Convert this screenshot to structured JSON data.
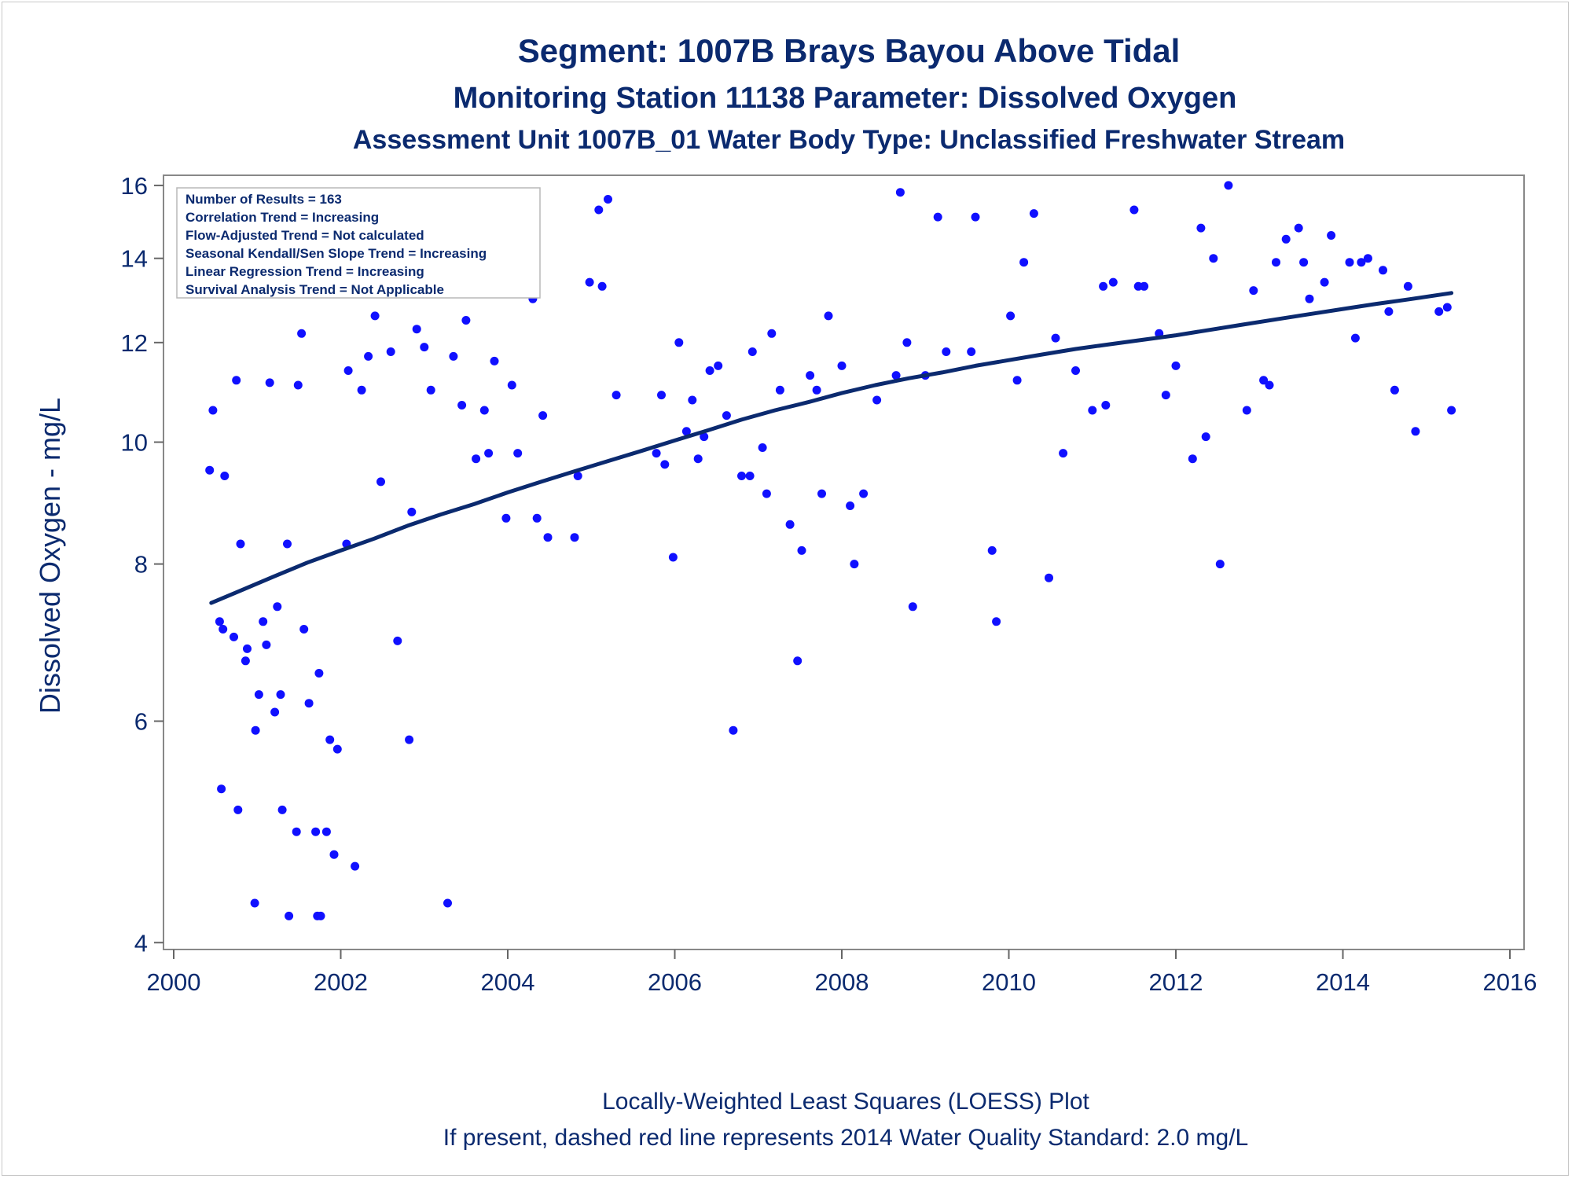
{
  "titles": {
    "line1": "Segment: 1007B  Brays Bayou Above Tidal",
    "line2": "Monitoring Station 11138 Parameter: Dissolved Oxygen",
    "line3": "Assessment Unit 1007B_01   Water Body Type: Unclassified Freshwater Stream"
  },
  "stats_box": [
    "Number of Results = 163",
    "Correlation Trend = Increasing",
    "Flow-Adjusted Trend = Not calculated",
    "Seasonal Kendall/Sen Slope Trend = Increasing",
    "Linear Regression Trend = Increasing",
    "Survival Analysis Trend = Not Applicable"
  ],
  "footer": {
    "line1": "Locally-Weighted Least Squares (LOESS) Plot",
    "line2": "If present, dashed red line represents 2014 Water Quality Standard: 2.0 mg/L"
  },
  "chart_data": {
    "type": "scatter",
    "ylabel": "Dissolved Oxygen - mg/L",
    "xlabel": "",
    "y_scale": "log",
    "xlim": [
      2000,
      2016
    ],
    "ylim": [
      3.95,
      16.3
    ],
    "x_ticks": [
      2000,
      2002,
      2004,
      2006,
      2008,
      2010,
      2012,
      2014,
      2016
    ],
    "y_ticks": [
      4,
      6,
      8,
      10,
      12,
      14,
      16
    ],
    "grid": false,
    "point_color": "#1010ff",
    "line_color": "#0b2a6f",
    "series": [
      {
        "kind": "points",
        "points": [
          [
            2000.43,
            9.5
          ],
          [
            2000.47,
            10.6
          ],
          [
            2000.55,
            7.2
          ],
          [
            2000.57,
            5.3
          ],
          [
            2000.59,
            7.1
          ],
          [
            2000.61,
            9.4
          ],
          [
            2000.72,
            7.0
          ],
          [
            2000.75,
            11.2
          ],
          [
            2000.77,
            5.1
          ],
          [
            2000.8,
            8.3
          ],
          [
            2000.86,
            6.7
          ],
          [
            2000.88,
            6.85
          ],
          [
            2000.97,
            4.3
          ],
          [
            2000.98,
            5.9
          ],
          [
            2001.02,
            6.3
          ],
          [
            2001.07,
            7.2
          ],
          [
            2001.11,
            6.9
          ],
          [
            2001.15,
            11.15
          ],
          [
            2001.21,
            6.1
          ],
          [
            2001.24,
            7.4
          ],
          [
            2001.28,
            6.3
          ],
          [
            2001.3,
            5.1
          ],
          [
            2001.36,
            8.3
          ],
          [
            2001.38,
            4.2
          ],
          [
            2001.47,
            4.9
          ],
          [
            2001.49,
            11.1
          ],
          [
            2001.53,
            12.2
          ],
          [
            2001.56,
            7.1
          ],
          [
            2001.62,
            6.2
          ],
          [
            2001.7,
            4.9
          ],
          [
            2001.72,
            4.2
          ],
          [
            2001.74,
            6.55
          ],
          [
            2001.76,
            4.2
          ],
          [
            2001.83,
            4.9
          ],
          [
            2001.87,
            5.8
          ],
          [
            2001.92,
            4.7
          ],
          [
            2001.96,
            5.7
          ],
          [
            2002.07,
            8.3
          ],
          [
            2002.09,
            11.4
          ],
          [
            2002.17,
            4.6
          ],
          [
            2002.25,
            11.0
          ],
          [
            2002.33,
            11.7
          ],
          [
            2002.41,
            12.6
          ],
          [
            2002.48,
            9.3
          ],
          [
            2002.6,
            11.8
          ],
          [
            2002.68,
            6.95
          ],
          [
            2002.82,
            5.8
          ],
          [
            2002.85,
            8.8
          ],
          [
            2002.91,
            12.3
          ],
          [
            2003.0,
            11.9
          ],
          [
            2003.08,
            11.0
          ],
          [
            2003.28,
            4.3
          ],
          [
            2003.35,
            11.7
          ],
          [
            2003.45,
            10.7
          ],
          [
            2003.5,
            12.5
          ],
          [
            2003.62,
            9.7
          ],
          [
            2003.72,
            10.6
          ],
          [
            2003.77,
            9.8
          ],
          [
            2003.84,
            11.6
          ],
          [
            2003.98,
            8.7
          ],
          [
            2004.05,
            11.1
          ],
          [
            2004.12,
            9.8
          ],
          [
            2004.3,
            13.0
          ],
          [
            2004.35,
            8.7
          ],
          [
            2004.42,
            10.5
          ],
          [
            2004.48,
            8.4
          ],
          [
            2004.8,
            8.4
          ],
          [
            2004.84,
            9.4
          ],
          [
            2004.98,
            13.4
          ],
          [
            2005.09,
            15.3
          ],
          [
            2005.13,
            13.3
          ],
          [
            2005.2,
            15.6
          ],
          [
            2005.3,
            10.9
          ],
          [
            2005.78,
            9.8
          ],
          [
            2005.84,
            10.9
          ],
          [
            2005.88,
            9.6
          ],
          [
            2005.98,
            8.1
          ],
          [
            2006.05,
            12.0
          ],
          [
            2006.14,
            10.2
          ],
          [
            2006.21,
            10.8
          ],
          [
            2006.28,
            9.7
          ],
          [
            2006.35,
            10.1
          ],
          [
            2006.42,
            11.4
          ],
          [
            2006.52,
            11.5
          ],
          [
            2006.62,
            10.5
          ],
          [
            2006.7,
            5.9
          ],
          [
            2006.8,
            9.4
          ],
          [
            2006.9,
            9.4
          ],
          [
            2006.93,
            11.8
          ],
          [
            2007.05,
            9.9
          ],
          [
            2007.1,
            9.1
          ],
          [
            2007.16,
            12.2
          ],
          [
            2007.26,
            11.0
          ],
          [
            2007.38,
            8.6
          ],
          [
            2007.47,
            6.7
          ],
          [
            2007.52,
            8.2
          ],
          [
            2007.62,
            11.3
          ],
          [
            2007.7,
            11.0
          ],
          [
            2007.76,
            9.1
          ],
          [
            2007.84,
            12.6
          ],
          [
            2008.0,
            11.5
          ],
          [
            2008.1,
            8.9
          ],
          [
            2008.15,
            8.0
          ],
          [
            2008.26,
            9.1
          ],
          [
            2008.42,
            10.8
          ],
          [
            2008.65,
            11.3
          ],
          [
            2008.7,
            15.8
          ],
          [
            2008.78,
            12.0
          ],
          [
            2008.85,
            7.4
          ],
          [
            2009.0,
            11.3
          ],
          [
            2009.15,
            15.1
          ],
          [
            2009.25,
            11.8
          ],
          [
            2009.55,
            11.8
          ],
          [
            2009.6,
            15.1
          ],
          [
            2009.8,
            8.2
          ],
          [
            2009.85,
            7.2
          ],
          [
            2010.02,
            12.6
          ],
          [
            2010.1,
            11.2
          ],
          [
            2010.18,
            13.9
          ],
          [
            2010.3,
            15.2
          ],
          [
            2010.48,
            7.8
          ],
          [
            2010.56,
            12.1
          ],
          [
            2010.65,
            9.8
          ],
          [
            2010.8,
            11.4
          ],
          [
            2011.0,
            10.6
          ],
          [
            2011.13,
            13.3
          ],
          [
            2011.16,
            10.7
          ],
          [
            2011.25,
            13.4
          ],
          [
            2011.5,
            15.3
          ],
          [
            2011.55,
            13.3
          ],
          [
            2011.62,
            13.3
          ],
          [
            2011.8,
            12.2
          ],
          [
            2011.88,
            10.9
          ],
          [
            2012.0,
            11.5
          ],
          [
            2012.2,
            9.7
          ],
          [
            2012.3,
            14.8
          ],
          [
            2012.36,
            10.1
          ],
          [
            2012.45,
            14.0
          ],
          [
            2012.53,
            8.0
          ],
          [
            2012.63,
            16.0
          ],
          [
            2012.85,
            10.6
          ],
          [
            2012.93,
            13.2
          ],
          [
            2013.05,
            11.2
          ],
          [
            2013.12,
            11.1
          ],
          [
            2013.2,
            13.9
          ],
          [
            2013.32,
            14.5
          ],
          [
            2013.47,
            14.8
          ],
          [
            2013.53,
            13.9
          ],
          [
            2013.6,
            13.0
          ],
          [
            2013.78,
            13.4
          ],
          [
            2013.86,
            14.6
          ],
          [
            2014.08,
            13.9
          ],
          [
            2014.15,
            12.1
          ],
          [
            2014.22,
            13.9
          ],
          [
            2014.3,
            14.0
          ],
          [
            2014.48,
            13.7
          ],
          [
            2014.55,
            12.7
          ],
          [
            2014.62,
            11.0
          ],
          [
            2014.78,
            13.3
          ],
          [
            2014.87,
            10.2
          ],
          [
            2015.15,
            12.7
          ],
          [
            2015.25,
            12.8
          ],
          [
            2015.3,
            10.6
          ]
        ]
      },
      {
        "kind": "loess",
        "points": [
          [
            2000.45,
            7.45
          ],
          [
            2000.8,
            7.62
          ],
          [
            2001.2,
            7.82
          ],
          [
            2001.6,
            8.02
          ],
          [
            2002.0,
            8.2
          ],
          [
            2002.4,
            8.38
          ],
          [
            2002.8,
            8.58
          ],
          [
            2003.2,
            8.76
          ],
          [
            2003.6,
            8.93
          ],
          [
            2004.0,
            9.12
          ],
          [
            2004.4,
            9.3
          ],
          [
            2004.8,
            9.48
          ],
          [
            2005.2,
            9.66
          ],
          [
            2005.6,
            9.84
          ],
          [
            2006.0,
            10.03
          ],
          [
            2006.4,
            10.22
          ],
          [
            2006.8,
            10.42
          ],
          [
            2007.2,
            10.6
          ],
          [
            2007.6,
            10.76
          ],
          [
            2008.0,
            10.94
          ],
          [
            2008.4,
            11.1
          ],
          [
            2008.8,
            11.24
          ],
          [
            2009.2,
            11.36
          ],
          [
            2009.6,
            11.5
          ],
          [
            2010.0,
            11.62
          ],
          [
            2010.4,
            11.74
          ],
          [
            2010.8,
            11.86
          ],
          [
            2011.2,
            11.96
          ],
          [
            2011.6,
            12.06
          ],
          [
            2012.0,
            12.16
          ],
          [
            2012.4,
            12.28
          ],
          [
            2012.8,
            12.4
          ],
          [
            2013.2,
            12.52
          ],
          [
            2013.6,
            12.64
          ],
          [
            2014.0,
            12.76
          ],
          [
            2014.4,
            12.88
          ],
          [
            2014.8,
            12.99
          ],
          [
            2015.3,
            13.14
          ]
        ]
      }
    ]
  }
}
